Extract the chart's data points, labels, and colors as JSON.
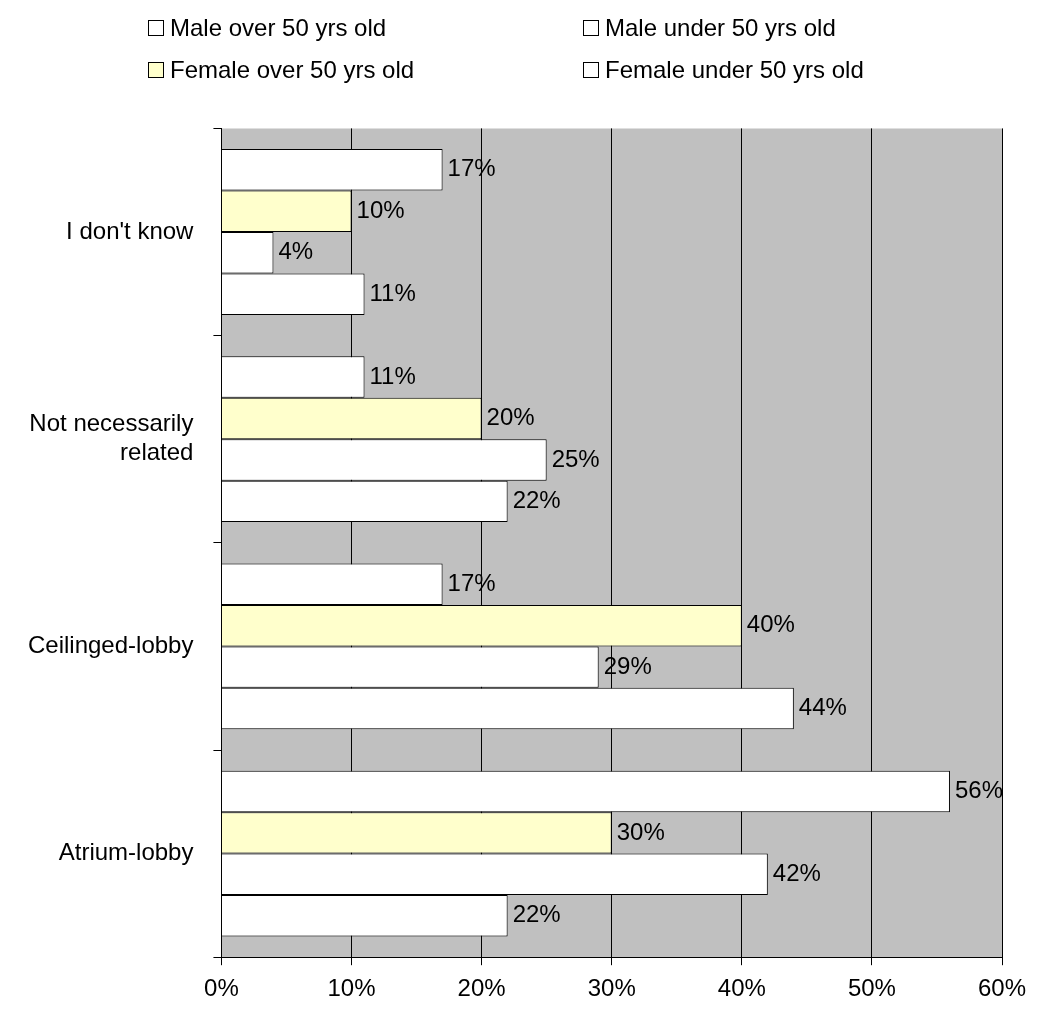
{
  "chart_data": {
    "type": "bar",
    "orientation": "horizontal",
    "categories": [
      "I don't know",
      "Not necessarily related",
      "Ceilinged-lobby",
      "Atrium-lobby"
    ],
    "series": [
      {
        "name": "Male over 50 yrs old",
        "color": "#ffffff",
        "values": [
          11,
          22,
          44,
          22
        ],
        "value_labels": [
          "11%",
          "22%",
          "44%",
          "22%"
        ]
      },
      {
        "name": "Male under 50 yrs old",
        "color": "#ffffff",
        "values": [
          4,
          25,
          29,
          42
        ],
        "value_labels": [
          "4%",
          "25%",
          "29%",
          "42%"
        ]
      },
      {
        "name": "Female over 50 yrs old",
        "color": "#ffffcc",
        "values": [
          10,
          20,
          40,
          30
        ],
        "value_labels": [
          "10%",
          "20%",
          "40%",
          "30%"
        ]
      },
      {
        "name": "Female under 50 yrs old",
        "color": "#ffffff",
        "values": [
          17,
          11,
          17,
          56
        ],
        "value_labels": [
          "17%",
          "11%",
          "17%",
          "56%"
        ]
      }
    ],
    "xlim": [
      0,
      60
    ],
    "xticks": [
      {
        "value": 0,
        "label": "0%"
      },
      {
        "value": 10,
        "label": "10%"
      },
      {
        "value": 20,
        "label": "20%"
      },
      {
        "value": 30,
        "label": "30%"
      },
      {
        "value": 40,
        "label": "40%"
      },
      {
        "value": 50,
        "label": "50%"
      },
      {
        "value": 60,
        "label": "60%"
      }
    ],
    "grid": "x",
    "legend": "top"
  }
}
